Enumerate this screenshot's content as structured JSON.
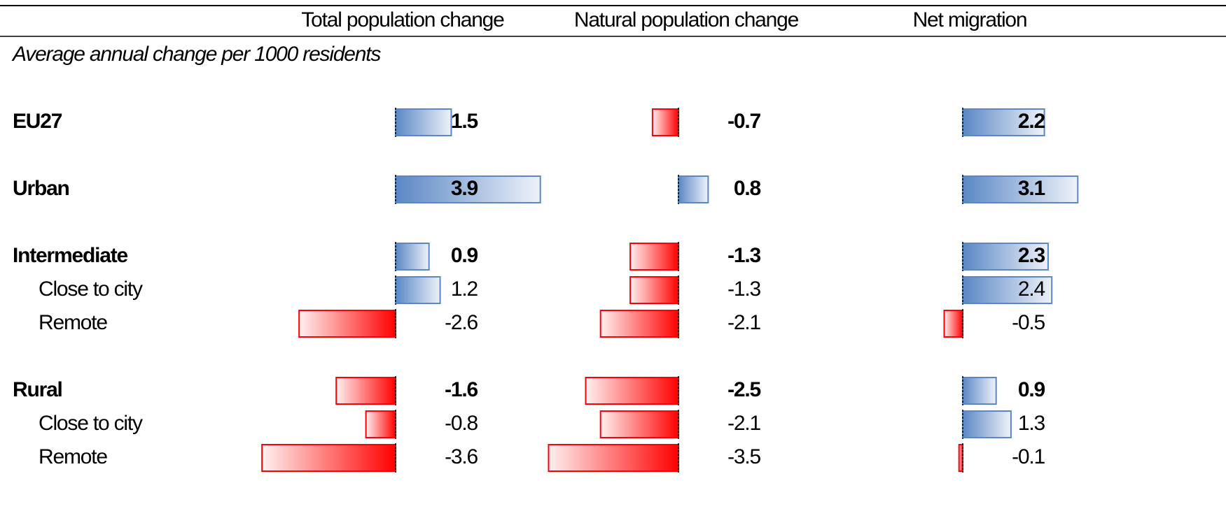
{
  "chart_data": {
    "type": "bar",
    "subtitle": "Average annual change per 1000 residents",
    "categories": [
      "EU27",
      "Urban",
      "Intermediate",
      "Close to city",
      "Remote",
      "Rural",
      "Close to city",
      "Remote"
    ],
    "level": [
      0,
      0,
      0,
      1,
      1,
      0,
      1,
      1
    ],
    "series": [
      {
        "name": "Total population change",
        "values": [
          1.5,
          3.9,
          0.9,
          1.2,
          -2.6,
          -1.6,
          -0.8,
          -3.6
        ]
      },
      {
        "name": "Natural population change",
        "values": [
          -0.7,
          0.8,
          -1.3,
          -1.3,
          -2.1,
          -2.5,
          -2.1,
          -3.5
        ]
      },
      {
        "name": "Net migration",
        "values": [
          2.2,
          3.1,
          2.3,
          2.4,
          -0.5,
          0.9,
          1.3,
          -0.1
        ]
      }
    ],
    "positive_color": "#5b87c4",
    "negative_color": "#ff0000"
  }
}
